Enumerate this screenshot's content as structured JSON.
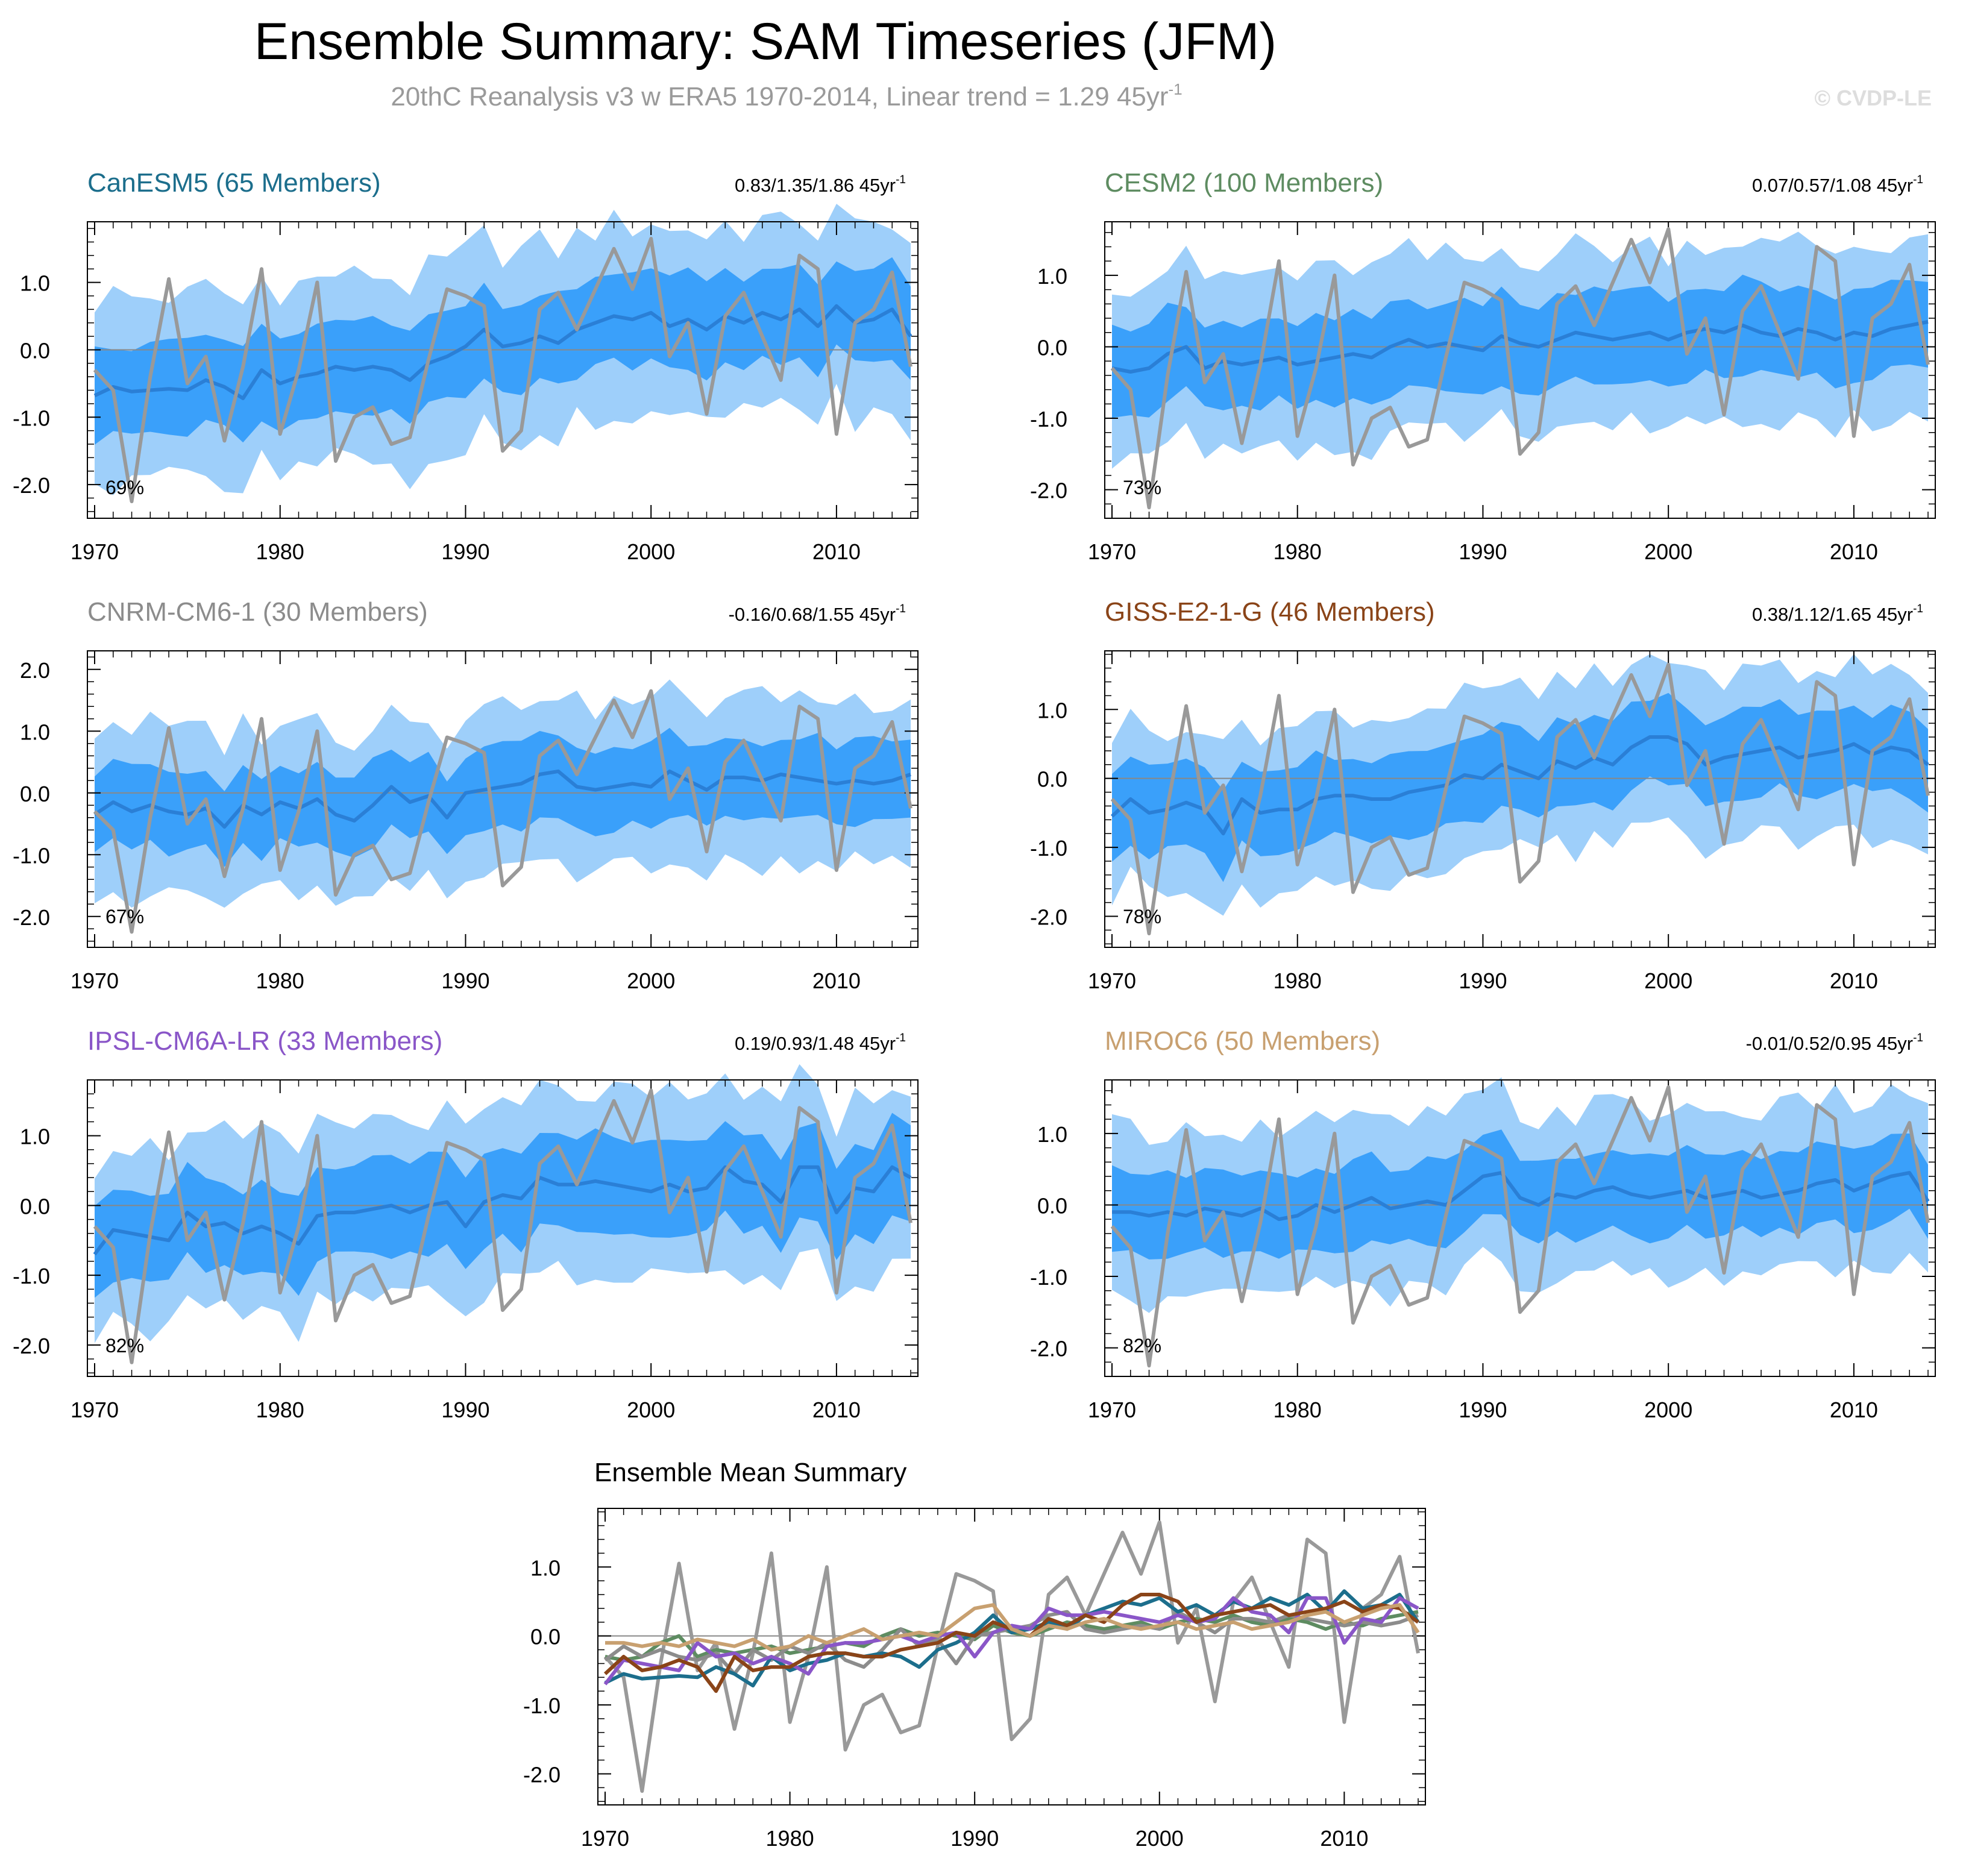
{
  "header": {
    "title": "Ensemble Summary: SAM Timeseries (JFM)",
    "subtitle_main": "20thC Reanalysis v3 w ERA5 1970-2014, Linear trend = 1.29 45yr",
    "subtitle_sup": "-1",
    "watermark": "© CVDP-LE"
  },
  "colors": {
    "outer_band": "#9ecffa",
    "inner_band": "#3aa0fa",
    "ens_mean_line": "#2a7fd6",
    "observed_line": "#999999",
    "zero_line": "#888888"
  },
  "chart_data": {
    "type": "line",
    "x": [
      1970,
      1971,
      1972,
      1973,
      1974,
      1975,
      1976,
      1977,
      1978,
      1979,
      1980,
      1981,
      1982,
      1983,
      1984,
      1985,
      1986,
      1987,
      1988,
      1989,
      1990,
      1991,
      1992,
      1993,
      1994,
      1995,
      1996,
      1997,
      1998,
      1999,
      2000,
      2001,
      2002,
      2003,
      2004,
      2005,
      2006,
      2007,
      2008,
      2009,
      2010,
      2011,
      2012,
      2013,
      2014
    ],
    "observed": {
      "name": "20thC Reanalysis v3 w ERA5",
      "values": [
        -0.3,
        -0.6,
        -2.25,
        -0.4,
        1.05,
        -0.5,
        -0.1,
        -1.35,
        -0.25,
        1.2,
        -1.25,
        -0.3,
        1.0,
        -1.65,
        -1.0,
        -0.85,
        -1.4,
        -1.3,
        -0.15,
        0.9,
        0.8,
        0.65,
        -1.5,
        -1.2,
        0.6,
        0.85,
        0.3,
        0.9,
        1.5,
        0.9,
        1.65,
        -0.1,
        0.4,
        -0.95,
        0.5,
        0.85,
        0.2,
        -0.45,
        1.4,
        1.2,
        -1.25,
        0.4,
        0.6,
        1.15,
        -0.25
      ]
    },
    "xticks": [
      1970,
      1980,
      1990,
      2000,
      2010
    ],
    "panels": [
      {
        "model": "CanESM5",
        "members_label": "(65 Members)",
        "title": "CanESM5 (65 Members)",
        "title_color": "#1c6e8c",
        "trend_label": "0.83/1.35/1.86 45yr",
        "trend_sup": "-1",
        "percent": "69%",
        "ylim": [
          -2.5,
          1.9
        ],
        "yticks": [
          "1.0",
          "0.0",
          "-1.0",
          "-2.0"
        ],
        "yticks_val": [
          1,
          0,
          -1,
          -2
        ],
        "ens_mean": [
          -0.68,
          -0.55,
          -0.62,
          -0.6,
          -0.58,
          -0.6,
          -0.45,
          -0.55,
          -0.72,
          -0.3,
          -0.5,
          -0.4,
          -0.35,
          -0.25,
          -0.3,
          -0.25,
          -0.3,
          -0.45,
          -0.2,
          -0.1,
          0.05,
          0.3,
          0.05,
          0.1,
          0.2,
          0.1,
          0.3,
          0.4,
          0.5,
          0.45,
          0.55,
          0.35,
          0.45,
          0.3,
          0.5,
          0.4,
          0.55,
          0.45,
          0.6,
          0.35,
          0.65,
          0.4,
          0.45,
          0.6,
          0.2
        ],
        "inner_spread": 0.65,
        "outer_spread": 1.35
      },
      {
        "model": "CESM2",
        "members_label": "(100 Members)",
        "title": "CESM2 (100 Members)",
        "title_color": "#5e8c61",
        "trend_label": "0.07/0.57/1.08 45yr",
        "trend_sup": "-1",
        "percent": "73%",
        "ylim": [
          -2.4,
          1.75
        ],
        "yticks": [
          "1.0",
          "0.0",
          "-1.0",
          "-2.0"
        ],
        "yticks_val": [
          1,
          0,
          -1,
          -2
        ],
        "ens_mean": [
          -0.3,
          -0.35,
          -0.3,
          -0.1,
          0.0,
          -0.3,
          -0.2,
          -0.25,
          -0.2,
          -0.15,
          -0.25,
          -0.2,
          -0.15,
          -0.1,
          -0.15,
          0.0,
          0.1,
          0.0,
          0.05,
          0.0,
          -0.05,
          0.15,
          0.05,
          0.0,
          0.1,
          0.2,
          0.15,
          0.1,
          0.15,
          0.2,
          0.1,
          0.2,
          0.25,
          0.2,
          0.3,
          0.2,
          0.15,
          0.25,
          0.2,
          0.1,
          0.2,
          0.15,
          0.25,
          0.3,
          0.35
        ],
        "inner_spread": 0.6,
        "outer_spread": 1.2
      },
      {
        "model": "CNRM-CM6-1",
        "members_label": "(30 Members)",
        "title": "CNRM-CM6-1 (30 Members)",
        "title_color": "#8c8c8c",
        "trend_label": "-0.16/0.68/1.55 45yr",
        "trend_sup": "-1",
        "percent": "67%",
        "ylim": [
          -2.5,
          2.3
        ],
        "yticks": [
          "2.0",
          "1.0",
          "0.0",
          "-1.0",
          "-2.0"
        ],
        "yticks_val": [
          2,
          1,
          0,
          -1,
          -2
        ],
        "ens_mean": [
          -0.35,
          -0.15,
          -0.3,
          -0.2,
          -0.3,
          -0.35,
          -0.25,
          -0.55,
          -0.2,
          -0.35,
          -0.15,
          -0.25,
          -0.1,
          -0.35,
          -0.45,
          -0.2,
          0.1,
          -0.15,
          -0.05,
          -0.4,
          0.0,
          0.05,
          0.1,
          0.15,
          0.3,
          0.35,
          0.1,
          0.05,
          0.1,
          0.15,
          0.1,
          0.35,
          0.2,
          0.05,
          0.25,
          0.25,
          0.2,
          0.3,
          0.25,
          0.2,
          0.15,
          0.2,
          0.15,
          0.2,
          0.3
        ],
        "inner_spread": 0.65,
        "outer_spread": 1.3
      },
      {
        "model": "GISS-E2-1-G",
        "members_label": "(46 Members)",
        "title": "GISS-E2-1-G (46 Members)",
        "title_color": "#8a4418",
        "trend_label": "0.38/1.12/1.65 45yr",
        "trend_sup": "-1",
        "percent": "78%",
        "ylim": [
          -2.45,
          1.85
        ],
        "yticks": [
          "1.0",
          "0.0",
          "-1.0",
          "-2.0"
        ],
        "yticks_val": [
          1,
          0,
          -1,
          -2
        ],
        "ens_mean": [
          -0.55,
          -0.3,
          -0.5,
          -0.45,
          -0.35,
          -0.45,
          -0.8,
          -0.3,
          -0.5,
          -0.45,
          -0.45,
          -0.3,
          -0.25,
          -0.25,
          -0.3,
          -0.3,
          -0.2,
          -0.15,
          -0.1,
          0.05,
          0.0,
          0.2,
          0.1,
          0.0,
          0.25,
          0.15,
          0.3,
          0.2,
          0.45,
          0.6,
          0.6,
          0.5,
          0.2,
          0.3,
          0.35,
          0.4,
          0.45,
          0.3,
          0.35,
          0.4,
          0.5,
          0.35,
          0.45,
          0.4,
          0.2
        ],
        "inner_spread": 0.6,
        "outer_spread": 1.15
      },
      {
        "model": "IPSL-CM6A-LR",
        "members_label": "(33 Members)",
        "title": "IPSL-CM6A-LR (33 Members)",
        "title_color": "#8a56c8",
        "trend_label": "0.19/0.93/1.48 45yr",
        "trend_sup": "-1",
        "percent": "82%",
        "ylim": [
          -2.45,
          1.8
        ],
        "yticks": [
          "1.0",
          "0.0",
          "-1.0",
          "-2.0"
        ],
        "yticks_val": [
          1,
          0,
          -1,
          -2
        ],
        "ens_mean": [
          -0.7,
          -0.35,
          -0.4,
          -0.45,
          -0.5,
          -0.1,
          -0.3,
          -0.25,
          -0.4,
          -0.3,
          -0.4,
          -0.55,
          -0.15,
          -0.1,
          -0.1,
          -0.05,
          0.0,
          -0.1,
          0.0,
          0.05,
          -0.3,
          0.05,
          0.15,
          0.1,
          0.4,
          0.3,
          0.3,
          0.35,
          0.3,
          0.25,
          0.2,
          0.3,
          0.2,
          0.25,
          0.55,
          0.35,
          0.3,
          0.05,
          0.55,
          0.55,
          -0.1,
          0.25,
          0.2,
          0.55,
          0.4
        ],
        "inner_spread": 0.65,
        "outer_spread": 1.25
      },
      {
        "model": "MIROC6",
        "members_label": "(50 Members)",
        "title": "MIROC6 (50 Members)",
        "title_color": "#c8a070",
        "trend_label": "-0.01/0.52/0.95 45yr",
        "trend_sup": "-1",
        "percent": "82%",
        "ylim": [
          -2.4,
          1.75
        ],
        "yticks": [
          "1.0",
          "0.0",
          "-1.0",
          "-2.0"
        ],
        "yticks_val": [
          1,
          0,
          -1,
          -2
        ],
        "ens_mean": [
          -0.1,
          -0.1,
          -0.15,
          -0.1,
          -0.15,
          -0.05,
          -0.1,
          -0.15,
          -0.05,
          -0.2,
          -0.15,
          0.0,
          -0.1,
          0.0,
          0.1,
          -0.05,
          0.0,
          0.05,
          0.0,
          0.2,
          0.4,
          0.45,
          0.1,
          0.0,
          0.15,
          0.1,
          0.2,
          0.25,
          0.15,
          0.1,
          0.15,
          0.2,
          0.1,
          0.15,
          0.2,
          0.1,
          0.15,
          0.2,
          0.3,
          0.35,
          0.2,
          0.3,
          0.4,
          0.45,
          0.05
        ],
        "inner_spread": 0.55,
        "outer_spread": 1.15
      }
    ],
    "summary": {
      "title": "Ensemble Mean Summary",
      "ylim": [
        -2.45,
        1.85
      ],
      "yticks": [
        "1.0",
        "0.0",
        "-1.0",
        "-2.0"
      ],
      "yticks_val": [
        1,
        0,
        -1,
        -2
      ]
    }
  }
}
